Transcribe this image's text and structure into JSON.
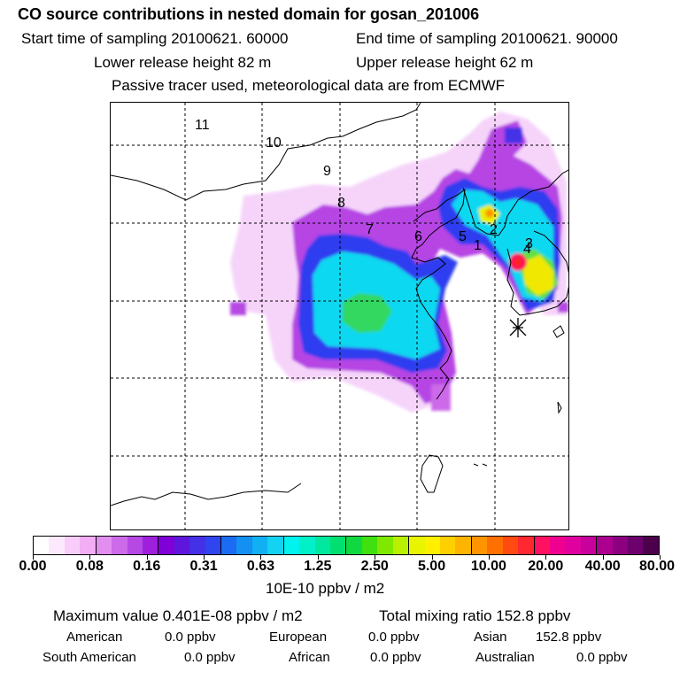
{
  "header": {
    "title": "CO  source contributions in nested domain for gosan_201006",
    "start_time": "Start time of sampling 20100621. 60000",
    "end_time": "End time of sampling 20100621. 90000",
    "lower_height": "Lower release height   82 m",
    "upper_height": "Upper release height   62 m",
    "note": "Passive tracer used, meteorological data are from ECMWF"
  },
  "map": {
    "trajectory_labels": [
      "1",
      "2",
      "3",
      "4",
      "5",
      "6",
      "7",
      "8",
      "9",
      "10",
      "11"
    ],
    "station_marker": "asterisk-icon"
  },
  "colorbar": {
    "labels": [
      "0.00",
      "0.08",
      "0.16",
      "0.31",
      "0.63",
      "1.25",
      "2.50",
      "5.00",
      "10.00",
      "20.00",
      "40.00",
      "80.00"
    ],
    "colors": [
      "#ffffff",
      "#fde9fd",
      "#f9cdf9",
      "#f2adf5",
      "#e18ef0",
      "#cc6ae9",
      "#b648e3",
      "#9e20dc",
      "#8000d8",
      "#5e15dc",
      "#4430e6",
      "#2f45f0",
      "#1b6cf2",
      "#1490f3",
      "#10b0f3",
      "#14d2f1",
      "#00f3ee",
      "#00f0c8",
      "#00e8a0",
      "#00e070",
      "#10d840",
      "#40e010",
      "#80e800",
      "#b8f000",
      "#e8f400",
      "#fff000",
      "#ffd000",
      "#ffb400",
      "#ff9400",
      "#ff7000",
      "#ff4a10",
      "#ff2830",
      "#ff1060",
      "#f00090",
      "#e000a0",
      "#c8009c",
      "#ac0090",
      "#8c0080",
      "#6c006c",
      "#4c004c"
    ],
    "units": "10E-10 ppbv / m2"
  },
  "stats": {
    "max_value": "Maximum value  0.401E-08 ppbv / m2",
    "total": "Total mixing ratio      152.8 ppbv",
    "american_label": "American",
    "american_value": "0.0 ppbv",
    "european_label": "European",
    "european_value": "0.0 ppbv",
    "asian_label": "Asian",
    "asian_value": "152.8 ppbv",
    "south_american_label": "South American",
    "south_american_value": "0.0 ppbv",
    "african_label": "African",
    "african_value": "0.0 ppbv",
    "australian_label": "Australian",
    "australian_value": "0.0 ppbv"
  }
}
